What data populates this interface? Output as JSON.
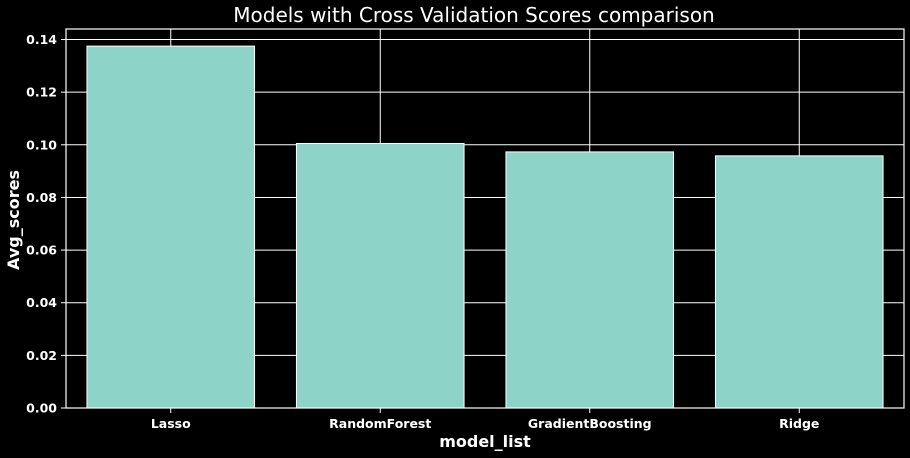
{
  "chart_data": {
    "type": "bar",
    "title": "Models with Cross Validation Scores comparison",
    "xlabel": "model_list",
    "ylabel": "Avg_scores",
    "categories": [
      "Lasso",
      "RandomForest",
      "GradientBoosting",
      "Ridge"
    ],
    "values": [
      0.1375,
      0.1005,
      0.0973,
      0.0958
    ],
    "ylim": [
      0,
      0.144
    ],
    "yticks": [
      "0.00",
      "0.02",
      "0.04",
      "0.06",
      "0.08",
      "0.10",
      "0.12",
      "0.14"
    ],
    "grid": true,
    "bar_color": "#8dd3c7",
    "background": "#000000",
    "foreground": "#ffffff"
  }
}
